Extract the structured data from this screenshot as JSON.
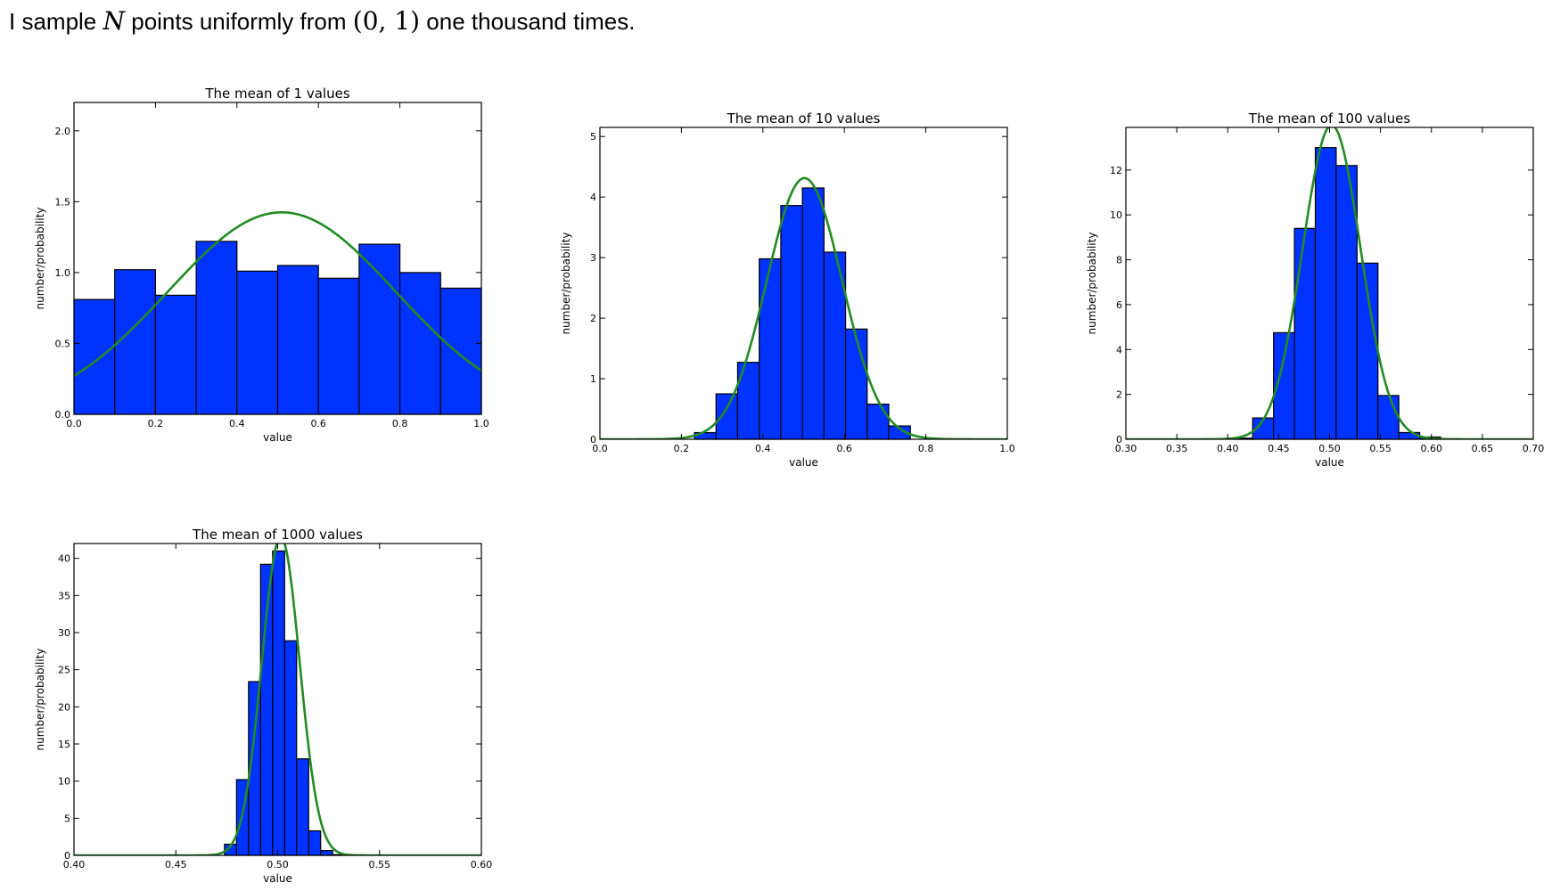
{
  "heading": {
    "pre": "I sample",
    "var": "N",
    "mid": "points uniformly from",
    "interval": "(0, 1)",
    "post": "one thousand times."
  },
  "colors": {
    "bar": "#0033ff",
    "bar_edge": "#000000",
    "curve": "#228b22"
  },
  "chart_data": [
    {
      "type": "bar",
      "title": "The mean of 1 values",
      "xlabel": "value",
      "ylabel": "number/probability",
      "xlim": [
        0.0,
        1.0
      ],
      "ylim": [
        0.0,
        2.2
      ],
      "xticks": [
        0.0,
        0.2,
        0.4,
        0.6,
        0.8,
        1.0
      ],
      "xtick_labels": [
        "0.0",
        "0.2",
        "0.4",
        "0.6",
        "0.8",
        "1.0"
      ],
      "yticks": [
        0.0,
        0.5,
        1.0,
        1.5,
        2.0
      ],
      "ytick_labels": [
        "0.0",
        "0.5",
        "1.0",
        "1.5",
        "2.0"
      ],
      "bin_edges": [
        0.0,
        0.1,
        0.2,
        0.3,
        0.4,
        0.5,
        0.6,
        0.7,
        0.8,
        0.9,
        1.0
      ],
      "values": [
        0.81,
        1.02,
        0.84,
        1.22,
        1.01,
        1.05,
        0.96,
        1.2,
        1.0,
        0.89
      ],
      "curve": {
        "mean": 0.51,
        "sd": 0.28
      }
    },
    {
      "type": "bar",
      "title": "The mean of 10 values",
      "xlabel": "value",
      "ylabel": "number/probability",
      "xlim": [
        0.0,
        1.0
      ],
      "ylim": [
        0.0,
        5.15
      ],
      "xticks": [
        0.0,
        0.2,
        0.4,
        0.6,
        0.8,
        1.0
      ],
      "xtick_labels": [
        "0.0",
        "0.2",
        "0.4",
        "0.6",
        "0.8",
        "1.0"
      ],
      "yticks": [
        0,
        1,
        2,
        3,
        4,
        5
      ],
      "ytick_labels": [
        "0",
        "1",
        "2",
        "3",
        "4",
        "5"
      ],
      "bin_edges": [
        0.232,
        0.285,
        0.338,
        0.391,
        0.444,
        0.497,
        0.55,
        0.603,
        0.656,
        0.709,
        0.762
      ],
      "values": [
        0.11,
        0.75,
        1.27,
        2.98,
        3.86,
        4.15,
        3.09,
        1.82,
        0.58,
        0.22
      ],
      "curve": {
        "mean": 0.502,
        "sd": 0.0925
      }
    },
    {
      "type": "bar",
      "title": "The mean of 100 values",
      "xlabel": "value",
      "ylabel": "number/probability",
      "xlim": [
        0.3,
        0.7
      ],
      "ylim": [
        0.0,
        13.9
      ],
      "xticks": [
        0.3,
        0.35,
        0.4,
        0.45,
        0.5,
        0.55,
        0.6,
        0.65,
        0.7
      ],
      "xtick_labels": [
        "0.30",
        "0.35",
        "0.40",
        "0.45",
        "0.50",
        "0.55",
        "0.60",
        "0.65",
        "0.70"
      ],
      "yticks": [
        0,
        2,
        4,
        6,
        8,
        10,
        12
      ],
      "ytick_labels": [
        "0",
        "2",
        "4",
        "6",
        "8",
        "10",
        "12"
      ],
      "bin_edges": [
        0.404,
        0.4245,
        0.445,
        0.4655,
        0.486,
        0.5065,
        0.527,
        0.5475,
        0.568,
        0.5885,
        0.609
      ],
      "values": [
        0.05,
        0.95,
        4.75,
        9.4,
        13.0,
        12.2,
        7.85,
        1.95,
        0.3,
        0.1
      ],
      "curve": {
        "mean": 0.502,
        "sd": 0.0285
      }
    },
    {
      "type": "bar",
      "title": "The mean of 1000 values",
      "xlabel": "value",
      "ylabel": "number/probability",
      "xlim": [
        0.4,
        0.6
      ],
      "ylim": [
        0.0,
        42.0
      ],
      "xticks": [
        0.4,
        0.45,
        0.5,
        0.55,
        0.6
      ],
      "xtick_labels": [
        "0.40",
        "0.45",
        "0.50",
        "0.55",
        "0.60"
      ],
      "yticks": [
        0,
        5,
        10,
        15,
        20,
        25,
        30,
        35,
        40
      ],
      "ytick_labels": [
        "0",
        "5",
        "10",
        "15",
        "20",
        "25",
        "30",
        "35",
        "40"
      ],
      "bin_edges": [
        0.4739,
        0.4798,
        0.4857,
        0.4916,
        0.4975,
        0.5034,
        0.5093,
        0.5152,
        0.5211,
        0.527,
        0.5329
      ],
      "values": [
        1.5,
        10.2,
        23.4,
        39.2,
        41.0,
        28.9,
        13.0,
        3.3,
        0.65,
        0.1
      ],
      "curve": {
        "mean": 0.5015,
        "sd": 0.0093
      }
    }
  ]
}
